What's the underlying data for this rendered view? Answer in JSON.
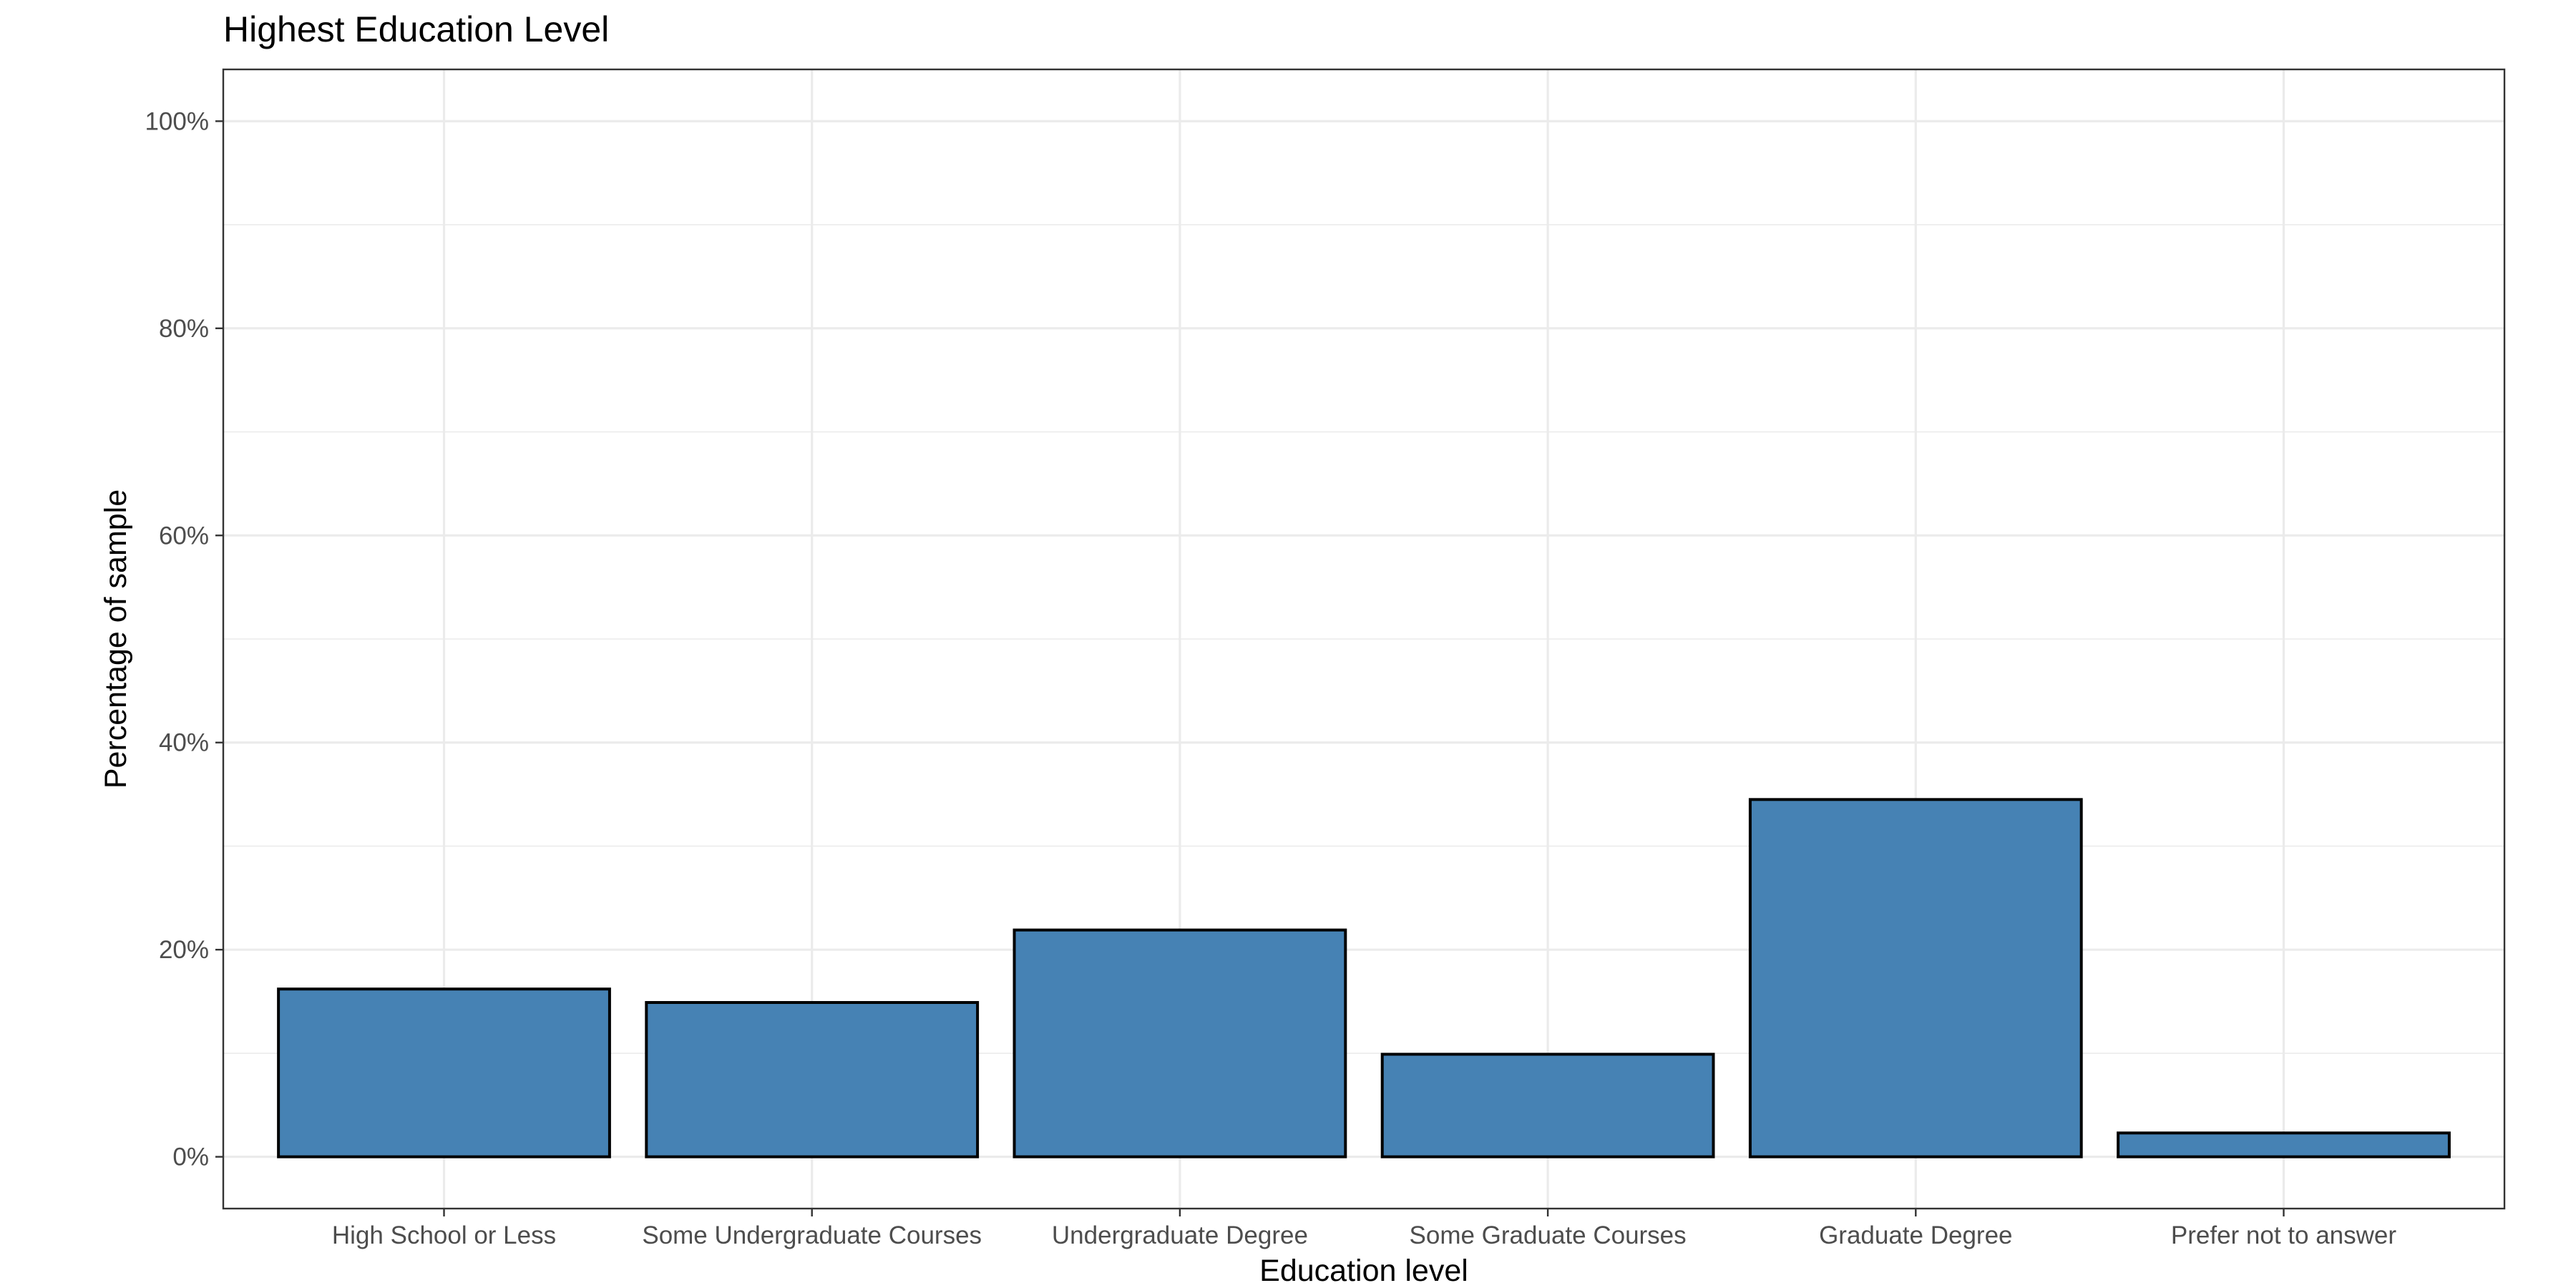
{
  "chart_data": {
    "type": "bar",
    "title": "Highest Education Level",
    "xlabel": "Education level",
    "ylabel": "Percentage of sample",
    "categories": [
      "High School or Less",
      "Some Undergraduate Courses",
      "Undergraduate Degree",
      "Some Graduate Courses",
      "Graduate Degree",
      "Prefer not to answer"
    ],
    "values": [
      16.2,
      14.9,
      21.9,
      9.9,
      34.5,
      2.3
    ],
    "value_unit": "percent",
    "ylim": [
      -5,
      105
    ],
    "y_ticks": [
      0,
      20,
      40,
      60,
      80,
      100
    ],
    "y_tick_labels": [
      "0%",
      "20%",
      "40%",
      "60%",
      "80%",
      "100%"
    ],
    "bar_color": "#4682b4",
    "bar_outline": "#000000",
    "grid": true,
    "legend": "none"
  }
}
